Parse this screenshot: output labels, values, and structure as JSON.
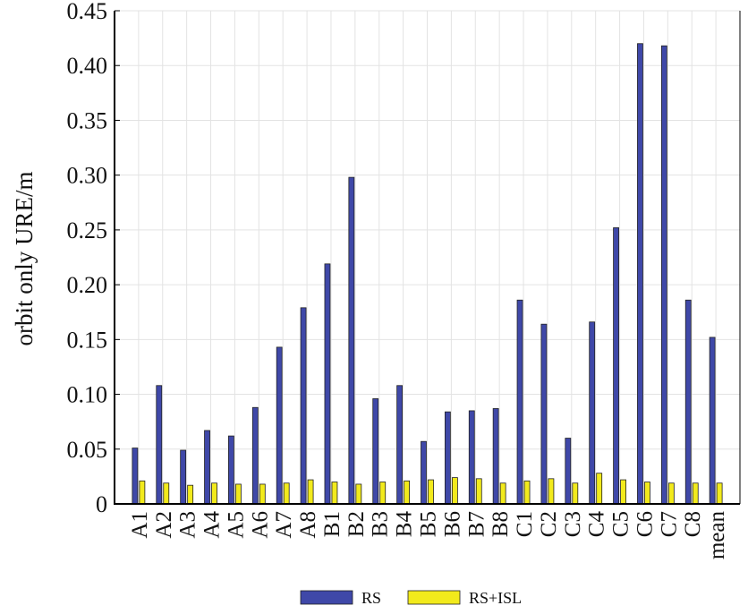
{
  "chart_data": {
    "type": "bar",
    "title": "",
    "xlabel": "",
    "ylabel": "orbit only URE/m",
    "ylim": [
      0,
      0.45
    ],
    "yticks": [
      "0",
      "0.05",
      "0.10",
      "0.15",
      "0.20",
      "0.25",
      "0.30",
      "0.35",
      "0.40",
      "0.45"
    ],
    "ytick_values": [
      0,
      0.05,
      0.1,
      0.15,
      0.2,
      0.25,
      0.3,
      0.35,
      0.4,
      0.45
    ],
    "grid": true,
    "legend_position": "bottom-center",
    "categories": [
      "A1",
      "A2",
      "A3",
      "A4",
      "A5",
      "A6",
      "A7",
      "A8",
      "B1",
      "B2",
      "B3",
      "B4",
      "B5",
      "B6",
      "B7",
      "B8",
      "C1",
      "C2",
      "C3",
      "C4",
      "C5",
      "C6",
      "C7",
      "C8",
      "mean"
    ],
    "series": [
      {
        "name": "RS",
        "color": "#3f48a8",
        "values": [
          0.051,
          0.108,
          0.049,
          0.067,
          0.062,
          0.088,
          0.143,
          0.179,
          0.219,
          0.298,
          0.096,
          0.108,
          0.057,
          0.084,
          0.085,
          0.087,
          0.186,
          0.164,
          0.06,
          0.166,
          0.252,
          0.42,
          0.418,
          0.186,
          0.152
        ]
      },
      {
        "name": "RS+ISL",
        "color": "#f2ea1c",
        "values": [
          0.021,
          0.019,
          0.017,
          0.019,
          0.018,
          0.018,
          0.019,
          0.022,
          0.02,
          0.018,
          0.02,
          0.021,
          0.022,
          0.024,
          0.023,
          0.019,
          0.021,
          0.023,
          0.019,
          0.028,
          0.022,
          0.02,
          0.019,
          0.019,
          0.019
        ]
      }
    ]
  }
}
